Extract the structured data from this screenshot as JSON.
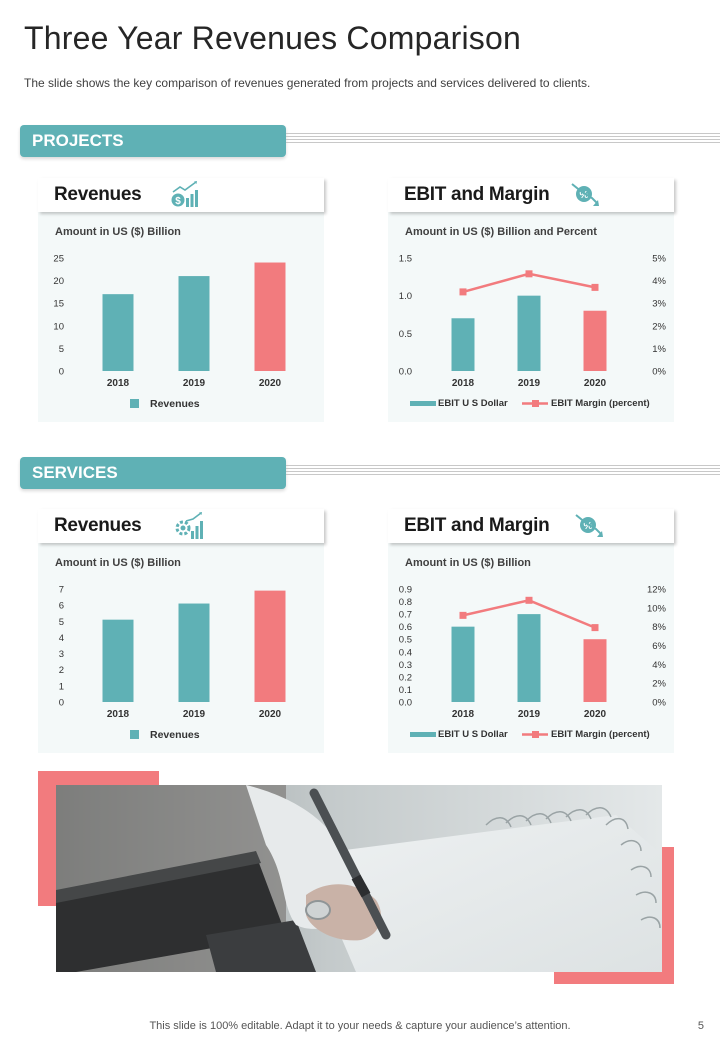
{
  "page": {
    "title": "Three Year Revenues Comparison",
    "subtitle": "The slide shows the key comparison of revenues  generated from projects and services delivered  to clients.",
    "footer": "This slide is 100% editable. Adapt it to your needs & capture your audience’s attention.",
    "page_number": "5"
  },
  "colors": {
    "teal": "#5fb1b5",
    "coral": "#f27b7e",
    "card_bg": "#f4f9f9"
  },
  "sections": [
    {
      "label": "PROJECTS",
      "revenue_card": {
        "title": "Revenues",
        "subtitle": "Amount in US ($) Billion",
        "icon": "revenue-chart-icon"
      },
      "ebit_card": {
        "title": "EBIT and Margin",
        "subtitle": "Amount in US ($) Billion  and Percent",
        "icon": "percent-down-icon"
      }
    },
    {
      "label": "SERVICES",
      "revenue_card": {
        "title": "Revenues",
        "subtitle": "Amount in US ($) Billion",
        "icon": "growth-gear-icon"
      },
      "ebit_card": {
        "title": "EBIT and Margin",
        "subtitle": "Amount in US ($) Billion",
        "icon": "percent-down-icon"
      }
    }
  ],
  "chart_data": [
    {
      "id": "projects-revenues",
      "type": "bar",
      "categories": [
        "2018",
        "2019",
        "2020"
      ],
      "series": [
        {
          "name": "Revenues",
          "values": [
            17,
            21,
            24
          ]
        }
      ],
      "highlight_colors": [
        "#5fb1b5",
        "#5fb1b5",
        "#f27b7e"
      ],
      "ylim": [
        0,
        25
      ],
      "yticks": [
        "0",
        "5",
        "10",
        "15",
        "20",
        "25"
      ],
      "legend": [
        "Revenues"
      ],
      "legend_position": "bottom"
    },
    {
      "id": "projects-ebit",
      "type": "bar-line",
      "categories": [
        "2018",
        "2019",
        "2020"
      ],
      "series": [
        {
          "name": "EBIT U S Dollar",
          "type": "bar",
          "axis": "left",
          "values": [
            0.7,
            1.0,
            0.8
          ]
        },
        {
          "name": "EBIT Margin (percent)",
          "type": "line",
          "axis": "right",
          "values": [
            3.5,
            4.3,
            3.7
          ]
        }
      ],
      "highlight_colors": [
        "#5fb1b5",
        "#5fb1b5",
        "#f27b7e"
      ],
      "ylim_left": [
        0,
        1.5
      ],
      "yticks_left": [
        "0.0",
        "0.5",
        "1.0",
        "1.5"
      ],
      "ylim_right": [
        0,
        5
      ],
      "yticks_right": [
        "0%",
        "1%",
        "2%",
        "3%",
        "4%",
        "5%"
      ],
      "legend": [
        "EBIT U S Dollar",
        "EBIT Margin (percent)"
      ],
      "legend_position": "bottom"
    },
    {
      "id": "services-revenues",
      "type": "bar",
      "categories": [
        "2018",
        "2019",
        "2020"
      ],
      "series": [
        {
          "name": "Revenues",
          "values": [
            5.1,
            6.1,
            6.9
          ]
        }
      ],
      "highlight_colors": [
        "#5fb1b5",
        "#5fb1b5",
        "#f27b7e"
      ],
      "ylim": [
        0,
        7
      ],
      "yticks": [
        "0",
        "1",
        "2",
        "3",
        "4",
        "5",
        "6",
        "7"
      ],
      "legend": [
        "Revenues"
      ],
      "legend_position": "bottom"
    },
    {
      "id": "services-ebit",
      "type": "bar-line",
      "categories": [
        "2018",
        "2019",
        "2020"
      ],
      "series": [
        {
          "name": "EBIT U S Dollar",
          "type": "bar",
          "axis": "left",
          "values": [
            0.6,
            0.7,
            0.5
          ]
        },
        {
          "name": "EBIT Margin (percent)",
          "type": "line",
          "axis": "right",
          "values": [
            9.2,
            10.8,
            7.9
          ]
        }
      ],
      "highlight_colors": [
        "#5fb1b5",
        "#5fb1b5",
        "#f27b7e"
      ],
      "ylim_left": [
        0,
        0.9
      ],
      "yticks_left": [
        "0.0",
        "0.1",
        "0.2",
        "0.3",
        "0.4",
        "0.5",
        "0.6",
        "0.7",
        "0.8",
        "0.9"
      ],
      "ylim_right": [
        0,
        12
      ],
      "yticks_right": [
        "0%",
        "2%",
        "4%",
        "6%",
        "8%",
        "10%",
        "12%"
      ],
      "legend": [
        "EBIT U S Dollar",
        "EBIT Margin (percent)"
      ],
      "legend_position": "bottom"
    }
  ]
}
